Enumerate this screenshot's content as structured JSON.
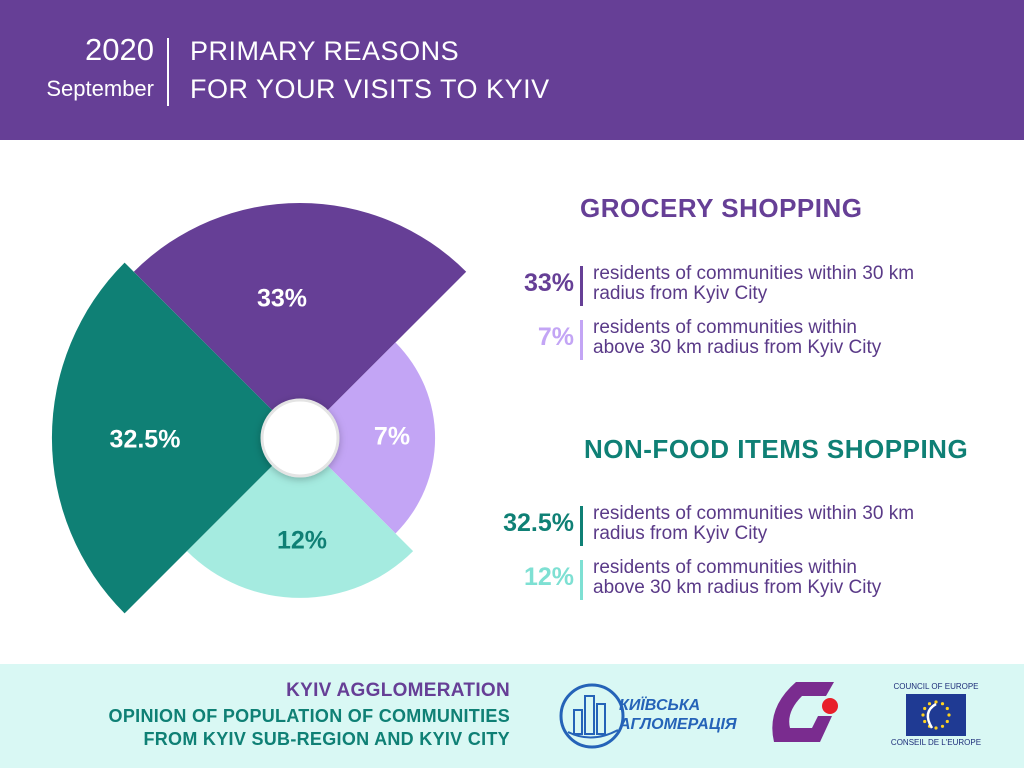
{
  "header": {
    "year": "2020",
    "month": "September",
    "title_line1": "PRIMARY REASONS",
    "title_line2": "FOR YOUR VISITS TO KYIV"
  },
  "colors": {
    "purple": "#663f96",
    "lavender": "#c3a5f5",
    "teal": "#0f8075",
    "mint": "#a5ebe0",
    "footer_bg": "#d9f8f4"
  },
  "chart_data": {
    "type": "pie",
    "style": "variable-radius rose with center hole",
    "slices": [
      {
        "label": "33%",
        "value": 33,
        "color": "#663f96"
      },
      {
        "label": "7%",
        "value": 7,
        "color": "#c3a5f5"
      },
      {
        "label": "12%",
        "value": 12,
        "color": "#a5ebe0"
      },
      {
        "label": "32.5%",
        "value": 32.5,
        "color": "#0f8075"
      }
    ]
  },
  "grocery": {
    "title": "GROCERY SHOPPING",
    "rows": [
      {
        "pct": "33%",
        "line1": "residents of communities within 30 km",
        "line2": "radius from Kyiv City",
        "color": "#663f96"
      },
      {
        "pct": "7%",
        "line1": "residents of communities within",
        "line2": "above 30 km radius from Kyiv City",
        "color": "#c3a5f5"
      }
    ]
  },
  "nonfood": {
    "title": "NON-FOOD ITEMS SHOPPING",
    "rows": [
      {
        "pct": "32.5%",
        "line1": "residents of communities within 30 km",
        "line2": "radius from Kyiv City",
        "color": "#0f8075"
      },
      {
        "pct": "12%",
        "line1": "residents of communities within",
        "line2": "above 30 km radius from Kyiv City",
        "color": "#7ee0d3"
      }
    ]
  },
  "footer": {
    "line1": "KYIV AGGLOMERATION",
    "line2": "OPINION OF POPULATION OF COMMUNITIES",
    "line3": "FROM KYIV SUB-REGION AND KYIV CITY",
    "logo_ka_line1": "КИЇВСЬКА",
    "logo_ka_line2": "АГЛОМЕРАЦІЯ",
    "coe_top": "COUNCIL OF EUROPE",
    "coe_bottom": "CONSEIL DE L'EUROPE"
  }
}
